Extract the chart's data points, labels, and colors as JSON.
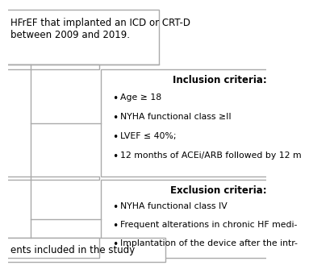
{
  "bg_color": "#f0f0f0",
  "fig_bg": "#ffffff",
  "box_edge_color": "#aaaaaa",
  "line_color": "#aaaaaa",
  "box1": {
    "text": "HFrEF that implanted an ICD or CRT-D\nbetween 2009 and 2019.",
    "fontsize": 8.5
  },
  "box_inclusion": {
    "title": "Inclusion criteria:",
    "items": [
      "Age ≥ 18",
      "NYHA functional class ≥II",
      "LVEF ≤ 40%;",
      "12 months of ACEi/ARB followed by 12 m"
    ],
    "fontsize": 7.8,
    "title_fontsize": 8.5
  },
  "box_exclusion": {
    "title": "Exclusion criteria:",
    "items": [
      "NYHA functional class IV",
      "Frequent alterations in chronic HF medi-",
      "Implantation of the device after the intr-"
    ],
    "fontsize": 7.8,
    "title_fontsize": 8.5
  },
  "box_bottom": {
    "text": "ents included in the study",
    "fontsize": 8.5
  }
}
